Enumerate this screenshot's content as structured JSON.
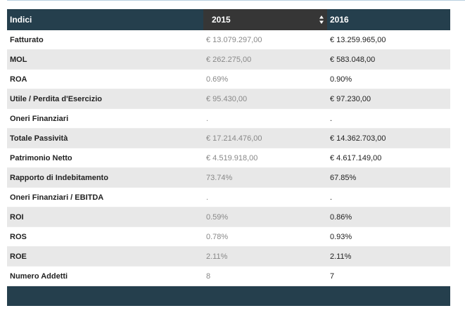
{
  "header": {
    "col1": "Indici",
    "col2": "2015",
    "col3": "2016"
  },
  "rows": [
    {
      "label": "Fatturato",
      "v2015": "€ 13.079.297,00",
      "v2016": "€ 13.259.965,00"
    },
    {
      "label": "MOL",
      "v2015": "€ 262.275,00",
      "v2016": "€ 583.048,00"
    },
    {
      "label": "ROA",
      "v2015": "0.69%",
      "v2016": "0.90%"
    },
    {
      "label": "Utile / Perdita d'Esercizio",
      "v2015": "€ 95.430,00",
      "v2016": "€ 97.230,00"
    },
    {
      "label": "Oneri Finanziari",
      "v2015": ".",
      "v2016": "."
    },
    {
      "label": "Totale Passività",
      "v2015": "€ 17.214.476,00",
      "v2016": "€ 14.362.703,00"
    },
    {
      "label": "Patrimonio Netto",
      "v2015": "€ 4.519.918,00",
      "v2016": "€ 4.617.149,00"
    },
    {
      "label": "Rapporto di Indebitamento",
      "v2015": "73.74%",
      "v2016": "67.85%"
    },
    {
      "label": "Oneri Finanziari / EBITDA",
      "v2015": ".",
      "v2016": "."
    },
    {
      "label": "ROI",
      "v2015": "0.59%",
      "v2016": "0.86%"
    },
    {
      "label": "ROS",
      "v2015": "0.78%",
      "v2016": "0.93%"
    },
    {
      "label": "ROE",
      "v2015": "2.11%",
      "v2016": "2.11%"
    },
    {
      "label": "Numero Addetti",
      "v2015": "8",
      "v2016": "7"
    }
  ],
  "colors": {
    "header_bg": "#253f4d",
    "active_col_bg": "#363636",
    "alt_row": "#e8e8e8"
  },
  "icons": {
    "sort": "sort-icon"
  }
}
